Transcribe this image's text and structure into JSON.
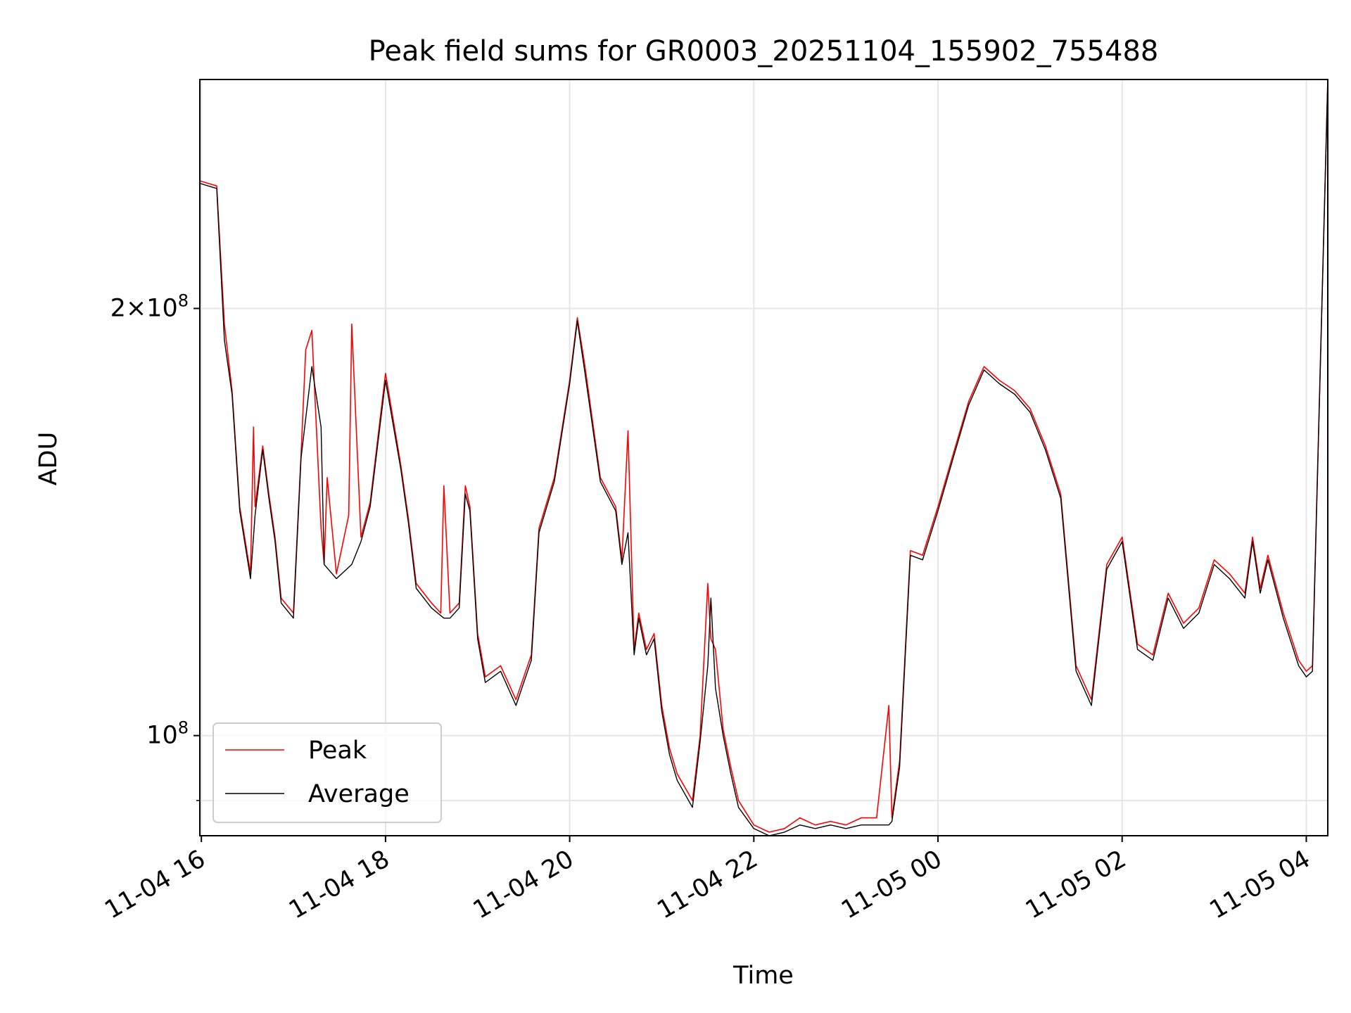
{
  "chart_data": {
    "type": "line",
    "title": "Peak field sums for GR0003_20251104_155902_755488",
    "xlabel": "Time",
    "ylabel": "ADU",
    "y_scale": "log",
    "ylim": [
      85000000,
      290000000
    ],
    "xlim": [
      "2025-11-04T15:59",
      "2025-11-05T04:14"
    ],
    "grid": true,
    "legend_position": "lower-left",
    "x_tick_labels": [
      "11-04 16",
      "11-04 18",
      "11-04 20",
      "11-04 22",
      "11-05 00",
      "11-05 02",
      "11-05 04"
    ],
    "x_tick_values": [
      "2025-11-04T16:00",
      "2025-11-04T18:00",
      "2025-11-04T20:00",
      "2025-11-04T22:00",
      "2025-11-05T00:00",
      "2025-11-05T02:00",
      "2025-11-05T04:00"
    ],
    "y_tick_labels": [
      {
        "value": 200000000,
        "mantissa": "2",
        "exponent": "8"
      },
      {
        "value": 100000000,
        "mantissa": "",
        "exponent": "8"
      }
    ],
    "y_minor_ticks": [
      90000000
    ],
    "series": [
      {
        "name": "Peak",
        "color": "#ff0000",
        "x": [
          "2025-11-04T15:59",
          "2025-11-04T16:10",
          "2025-11-04T16:15",
          "2025-11-04T16:20",
          "2025-11-04T16:25",
          "2025-11-04T16:32",
          "2025-11-04T16:34",
          "2025-11-04T16:35",
          "2025-11-04T16:40",
          "2025-11-04T16:44",
          "2025-11-04T16:48",
          "2025-11-04T16:52",
          "2025-11-04T17:00",
          "2025-11-04T17:05",
          "2025-11-04T17:08",
          "2025-11-04T17:12",
          "2025-11-04T17:18",
          "2025-11-04T17:20",
          "2025-11-04T17:22",
          "2025-11-04T17:28",
          "2025-11-04T17:36",
          "2025-11-04T17:38",
          "2025-11-04T17:44",
          "2025-11-04T17:50",
          "2025-11-04T18:00",
          "2025-11-04T18:10",
          "2025-11-04T18:15",
          "2025-11-04T18:20",
          "2025-11-04T18:30",
          "2025-11-04T18:36",
          "2025-11-04T18:38",
          "2025-11-04T18:42",
          "2025-11-04T18:48",
          "2025-11-04T18:52",
          "2025-11-04T18:55",
          "2025-11-04T19:00",
          "2025-11-04T19:05",
          "2025-11-04T19:15",
          "2025-11-04T19:25",
          "2025-11-04T19:35",
          "2025-11-04T19:40",
          "2025-11-04T19:50",
          "2025-11-04T20:00",
          "2025-11-04T20:05",
          "2025-11-04T20:10",
          "2025-11-04T20:20",
          "2025-11-04T20:30",
          "2025-11-04T20:34",
          "2025-11-04T20:38",
          "2025-11-04T20:42",
          "2025-11-04T20:45",
          "2025-11-04T20:50",
          "2025-11-04T20:55",
          "2025-11-04T21:00",
          "2025-11-04T21:05",
          "2025-11-04T21:10",
          "2025-11-04T21:20",
          "2025-11-04T21:25",
          "2025-11-04T21:30",
          "2025-11-04T21:32",
          "2025-11-04T21:35",
          "2025-11-04T21:40",
          "2025-11-04T21:45",
          "2025-11-04T21:50",
          "2025-11-04T22:00",
          "2025-11-04T22:10",
          "2025-11-04T22:20",
          "2025-11-04T22:30",
          "2025-11-04T22:40",
          "2025-11-04T22:50",
          "2025-11-04T23:00",
          "2025-11-04T23:10",
          "2025-11-04T23:20",
          "2025-11-04T23:28",
          "2025-11-04T23:30",
          "2025-11-04T23:35",
          "2025-11-04T23:42",
          "2025-11-04T23:50",
          "2025-11-05T00:00",
          "2025-11-05T00:10",
          "2025-11-05T00:20",
          "2025-11-05T00:30",
          "2025-11-05T00:40",
          "2025-11-05T00:50",
          "2025-11-05T01:00",
          "2025-11-05T01:10",
          "2025-11-05T01:20",
          "2025-11-05T01:30",
          "2025-11-05T01:40",
          "2025-11-05T01:50",
          "2025-11-05T02:00",
          "2025-11-05T02:10",
          "2025-11-05T02:20",
          "2025-11-05T02:30",
          "2025-11-05T02:40",
          "2025-11-05T02:50",
          "2025-11-05T03:00",
          "2025-11-05T03:10",
          "2025-11-05T03:20",
          "2025-11-05T03:25",
          "2025-11-05T03:30",
          "2025-11-05T03:35",
          "2025-11-05T03:45",
          "2025-11-05T03:55",
          "2025-11-05T04:00",
          "2025-11-05T04:04",
          "2025-11-05T04:14"
        ],
        "y": [
          246000000,
          244000000,
          195000000,
          175000000,
          145000000,
          130000000,
          165000000,
          145000000,
          160000000,
          148000000,
          138000000,
          125000000,
          122000000,
          158000000,
          187000000,
          193000000,
          140000000,
          132000000,
          152000000,
          130000000,
          143000000,
          195000000,
          138000000,
          146000000,
          180000000,
          155000000,
          142000000,
          128000000,
          124000000,
          122000000,
          150000000,
          122000000,
          124000000,
          150000000,
          145000000,
          118000000,
          110000000,
          112000000,
          106000000,
          114000000,
          140000000,
          152000000,
          178000000,
          197000000,
          182000000,
          152000000,
          145000000,
          133000000,
          164000000,
          115000000,
          122000000,
          115000000,
          118000000,
          105000000,
          98000000,
          94000000,
          90000000,
          100000000,
          128000000,
          117000000,
          115000000,
          101000000,
          95000000,
          90000000,
          86500000,
          85500000,
          86000000,
          87500000,
          86500000,
          87000000,
          86500000,
          87500000,
          87500000,
          105000000,
          87500000,
          96000000,
          135000000,
          134000000,
          145000000,
          158000000,
          172000000,
          182000000,
          178000000,
          175000000,
          170000000,
          160000000,
          148000000,
          112000000,
          106000000,
          132000000,
          138000000,
          116000000,
          114000000,
          126000000,
          120000000,
          123000000,
          133000000,
          130000000,
          126000000,
          138000000,
          127000000,
          134000000,
          122000000,
          113000000,
          111000000,
          112000000,
          290000000
        ]
      },
      {
        "name": "Average",
        "color": "#000000",
        "x": [
          "2025-11-04T15:59",
          "2025-11-04T16:10",
          "2025-11-04T16:15",
          "2025-11-04T16:20",
          "2025-11-04T16:25",
          "2025-11-04T16:32",
          "2025-11-04T16:35",
          "2025-11-04T16:40",
          "2025-11-04T16:44",
          "2025-11-04T16:48",
          "2025-11-04T16:52",
          "2025-11-04T17:00",
          "2025-11-04T17:05",
          "2025-11-04T17:12",
          "2025-11-04T17:18",
          "2025-11-04T17:20",
          "2025-11-04T17:28",
          "2025-11-04T17:38",
          "2025-11-04T17:44",
          "2025-11-04T17:50",
          "2025-11-04T18:00",
          "2025-11-04T18:10",
          "2025-11-04T18:15",
          "2025-11-04T18:20",
          "2025-11-04T18:30",
          "2025-11-04T18:38",
          "2025-11-04T18:42",
          "2025-11-04T18:48",
          "2025-11-04T18:52",
          "2025-11-04T18:55",
          "2025-11-04T19:00",
          "2025-11-04T19:05",
          "2025-11-04T19:15",
          "2025-11-04T19:25",
          "2025-11-04T19:35",
          "2025-11-04T19:40",
          "2025-11-04T19:50",
          "2025-11-04T20:00",
          "2025-11-04T20:05",
          "2025-11-04T20:10",
          "2025-11-04T20:20",
          "2025-11-04T20:30",
          "2025-11-04T20:34",
          "2025-11-04T20:38",
          "2025-11-04T20:42",
          "2025-11-04T20:45",
          "2025-11-04T20:50",
          "2025-11-04T20:55",
          "2025-11-04T21:00",
          "2025-11-04T21:05",
          "2025-11-04T21:10",
          "2025-11-04T21:20",
          "2025-11-04T21:25",
          "2025-11-04T21:30",
          "2025-11-04T21:32",
          "2025-11-04T21:35",
          "2025-11-04T21:40",
          "2025-11-04T21:45",
          "2025-11-04T21:50",
          "2025-11-04T22:00",
          "2025-11-04T22:10",
          "2025-11-04T22:20",
          "2025-11-04T22:30",
          "2025-11-04T22:40",
          "2025-11-04T22:50",
          "2025-11-04T23:00",
          "2025-11-04T23:10",
          "2025-11-04T23:20",
          "2025-11-04T23:28",
          "2025-11-04T23:30",
          "2025-11-04T23:35",
          "2025-11-04T23:42",
          "2025-11-04T23:50",
          "2025-11-05T00:00",
          "2025-11-05T00:10",
          "2025-11-05T00:20",
          "2025-11-05T00:30",
          "2025-11-05T00:40",
          "2025-11-05T00:50",
          "2025-11-05T01:00",
          "2025-11-05T01:10",
          "2025-11-05T01:20",
          "2025-11-05T01:30",
          "2025-11-05T01:40",
          "2025-11-05T01:50",
          "2025-11-05T02:00",
          "2025-11-05T02:10",
          "2025-11-05T02:20",
          "2025-11-05T02:30",
          "2025-11-05T02:40",
          "2025-11-05T02:50",
          "2025-11-05T03:00",
          "2025-11-05T03:10",
          "2025-11-05T03:20",
          "2025-11-05T03:25",
          "2025-11-05T03:30",
          "2025-11-05T03:35",
          "2025-11-05T03:45",
          "2025-11-05T03:55",
          "2025-11-05T04:00",
          "2025-11-05T04:04",
          "2025-11-05T04:14"
        ],
        "y": [
          245000000,
          243000000,
          190000000,
          174000000,
          144000000,
          129000000,
          143000000,
          159000000,
          147000000,
          137000000,
          124000000,
          121000000,
          157000000,
          182000000,
          165000000,
          132000000,
          129000000,
          132000000,
          137000000,
          145000000,
          178000000,
          154000000,
          141000000,
          127000000,
          123000000,
          121000000,
          121000000,
          123000000,
          148000000,
          144000000,
          117000000,
          109000000,
          111000000,
          105000000,
          113000000,
          139000000,
          151000000,
          177000000,
          196000000,
          180000000,
          151000000,
          144000000,
          132000000,
          139000000,
          114000000,
          121000000,
          114000000,
          117000000,
          104000000,
          97000000,
          93000000,
          89000000,
          99000000,
          112000000,
          125000000,
          108000000,
          100000000,
          94000000,
          89000000,
          86000000,
          85000000,
          85500000,
          86500000,
          86000000,
          86500000,
          86000000,
          86500000,
          86500000,
          86500000,
          87000000,
          95000000,
          134000000,
          133000000,
          144000000,
          157000000,
          171000000,
          181000000,
          177000000,
          174000000,
          169000000,
          159000000,
          147000000,
          111000000,
          105000000,
          131000000,
          137000000,
          115000000,
          113000000,
          125000000,
          119000000,
          122000000,
          132000000,
          129000000,
          125000000,
          137000000,
          126000000,
          133000000,
          121000000,
          112000000,
          110000000,
          111000000,
          290000000
        ]
      }
    ]
  }
}
